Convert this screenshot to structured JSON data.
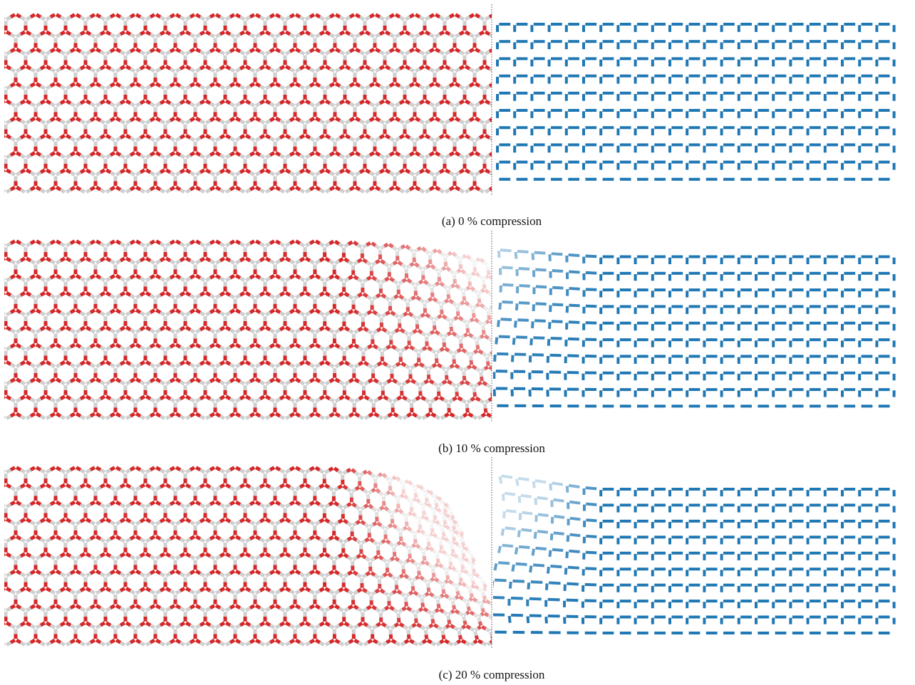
{
  "panels": [
    {
      "caption": "(a) 0 % compression"
    },
    {
      "caption": "(b) 10 % compression"
    },
    {
      "caption": "(c) 20 % compression"
    }
  ]
}
